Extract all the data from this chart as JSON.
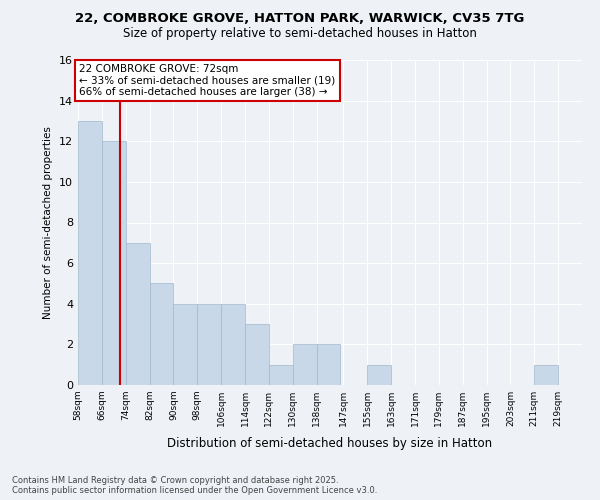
{
  "title1": "22, COMBROKE GROVE, HATTON PARK, WARWICK, CV35 7TG",
  "title2": "Size of property relative to semi-detached houses in Hatton",
  "xlabel": "Distribution of semi-detached houses by size in Hatton",
  "ylabel": "Number of semi-detached properties",
  "footnote": "Contains HM Land Registry data © Crown copyright and database right 2025.\nContains public sector information licensed under the Open Government Licence v3.0.",
  "bin_labels": [
    "58sqm",
    "66sqm",
    "74sqm",
    "82sqm",
    "90sqm",
    "98sqm",
    "106sqm",
    "114sqm",
    "122sqm",
    "130sqm",
    "138sqm",
    "147sqm",
    "155sqm",
    "163sqm",
    "171sqm",
    "179sqm",
    "187sqm",
    "195sqm",
    "203sqm",
    "211sqm",
    "219sqm"
  ],
  "bin_edges": [
    58,
    66,
    74,
    82,
    90,
    98,
    106,
    114,
    122,
    130,
    138,
    147,
    155,
    163,
    171,
    179,
    187,
    195,
    203,
    211,
    219
  ],
  "counts": [
    13,
    12,
    7,
    5,
    4,
    4,
    4,
    3,
    1,
    2,
    2,
    0,
    1,
    0,
    0,
    0,
    0,
    0,
    0,
    1,
    0
  ],
  "bar_color": "#c8d8e8",
  "bar_edge_color": "#a0b8cc",
  "property_value": 72,
  "property_line_color": "#cc0000",
  "annotation_text": "22 COMBROKE GROVE: 72sqm\n← 33% of semi-detached houses are smaller (19)\n66% of semi-detached houses are larger (38) →",
  "annotation_box_color": "#ffffff",
  "annotation_box_edge_color": "#cc0000",
  "ylim": [
    0,
    16
  ],
  "yticks": [
    0,
    2,
    4,
    6,
    8,
    10,
    12,
    14,
    16
  ],
  "background_color": "#eef2f7",
  "plot_background": "#eef2f7"
}
